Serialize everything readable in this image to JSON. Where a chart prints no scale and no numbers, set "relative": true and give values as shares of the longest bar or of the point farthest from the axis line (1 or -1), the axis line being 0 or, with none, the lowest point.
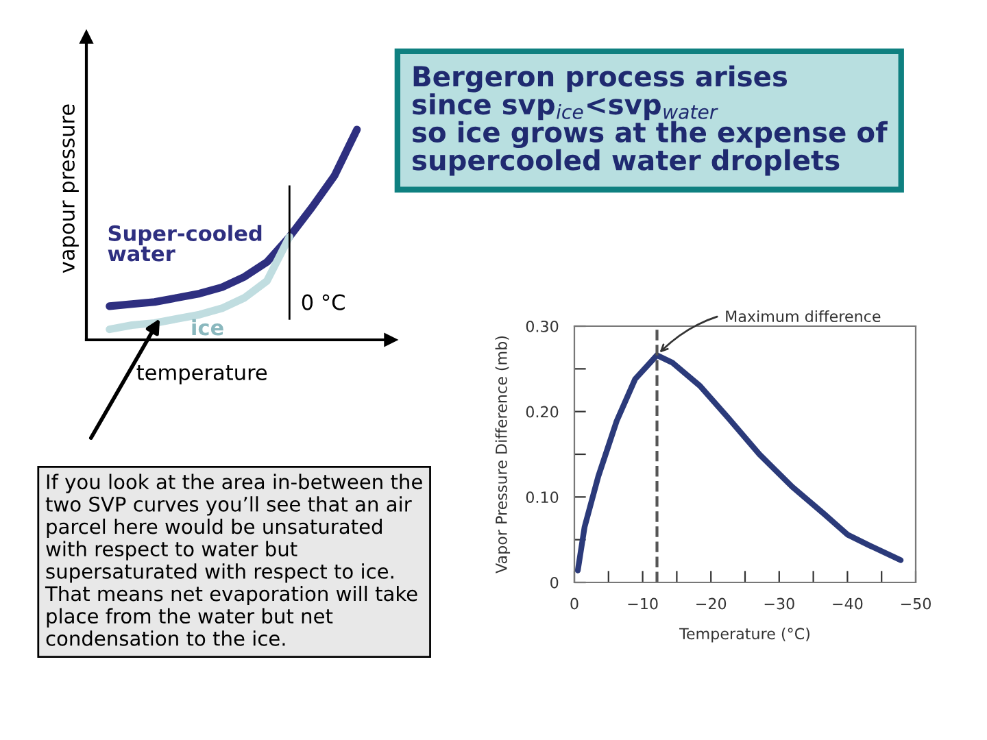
{
  "chart_data": [
    {
      "type": "line",
      "relative": true,
      "tick_labels": false,
      "xlabel": "temperature",
      "ylabel": "vapour pressure",
      "categories": [
        null,
        null,
        null,
        null,
        null,
        null,
        null,
        null,
        null,
        null,
        null,
        null
      ],
      "series": [
        {
          "name": "Super-cooled water",
          "color": "#2e2f80",
          "values": [
            0.16,
            0.17,
            0.18,
            0.2,
            0.22,
            0.25,
            0.3,
            0.37,
            0.49,
            0.63,
            0.78,
            1.0
          ]
        },
        {
          "name": "ice",
          "color": "#c0dde0",
          "values": [
            0.05,
            0.07,
            0.08,
            0.1,
            0.12,
            0.15,
            0.2,
            0.28,
            0.49,
            null,
            null,
            null
          ]
        }
      ],
      "annotations": [
        "0 °C",
        "Bergeron process arises\nsince svp$_{ice}$<svp$_{water}$\nso ice grows at the expense of\nsupercooled water droplets",
        "If you look at the area in-between the\ntwo SVP curves you’ll see that an air\nparcel here would be unsaturated\nwith respect to water but\nsupersaturated with respect to ice.\nThat means net evaporation will take\nplace from the water but net\ncondensation to the ice."
      ]
    },
    {
      "type": "line",
      "xlabel": "Temperature (°C)",
      "ylabel": "Vapor Pressure Difference (mb)",
      "xlim": [
        0,
        -50
      ],
      "ylim": [
        0,
        0.3
      ],
      "xticks": [
        0,
        {
          "value": -5,
          "label": null
        },
        {
          "value": -10,
          "label": "−10"
        },
        {
          "value": -15,
          "label": null
        },
        {
          "value": -20,
          "label": "−20"
        },
        {
          "value": -25,
          "label": null
        },
        {
          "value": -30,
          "label": "−30"
        },
        {
          "value": -35,
          "label": null
        },
        {
          "value": -40,
          "label": "−40"
        },
        {
          "value": -45,
          "label": null
        },
        {
          "value": -50,
          "label": "−50"
        }
      ],
      "yticks": [
        0,
        {
          "value": 0.05,
          "label": null
        },
        {
          "value": 0.1,
          "label": "0.10"
        },
        {
          "value": 0.15,
          "label": null
        },
        {
          "value": 0.2,
          "label": "0.20"
        },
        {
          "value": 0.25,
          "label": null
        },
        {
          "value": 0.3,
          "label": "0.30"
        }
      ],
      "series": [
        {
          "color": "#2b3a7a",
          "x": [
            -0.5,
            -1.5,
            -3.5,
            -6.2,
            -8.9,
            -12.1,
            -14.4,
            -18.4,
            -22.5,
            -27.1,
            -31.9,
            -36.6,
            -40.0,
            -43.3,
            -47.8
          ],
          "values": [
            0.014,
            0.065,
            0.124,
            0.189,
            0.238,
            0.266,
            0.257,
            0.23,
            0.193,
            0.15,
            0.112,
            0.08,
            0.056,
            0.043,
            0.026
          ]
        }
      ],
      "ref_lines": [
        {
          "axis": "x",
          "value": -12.1,
          "line_style": "dashed",
          "color": "#555555"
        }
      ],
      "annotations": [
        {
          "text": "Maximum difference",
          "x": -12.1,
          "y": 0.266
        }
      ]
    }
  ]
}
